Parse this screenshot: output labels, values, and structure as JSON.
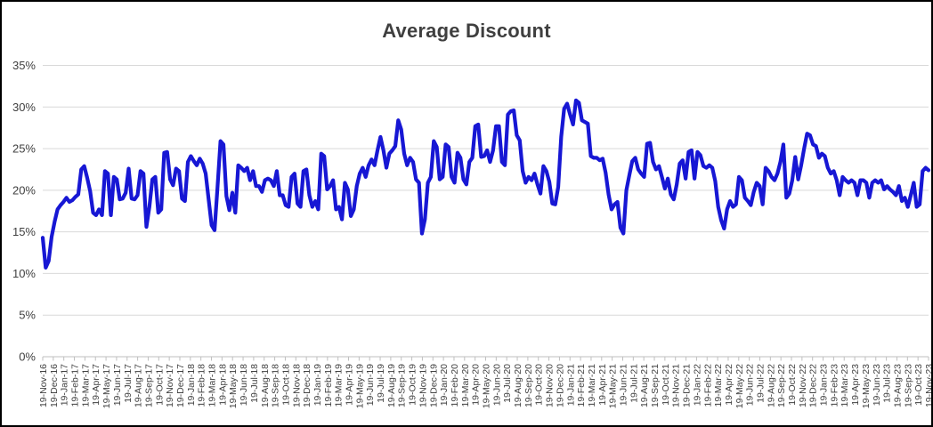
{
  "chart_data": {
    "type": "line",
    "title": "Average Discount",
    "legend": false,
    "grid": true,
    "colors": {
      "line": "#1717d4",
      "gridline": "#d9d9d9",
      "axis": "#bfbfbf",
      "tick_label": "#404040",
      "title": "#3f3f3f"
    },
    "y_axis": {
      "min": 0,
      "max": 35,
      "step": 5,
      "tick_labels": [
        "0%",
        "5%",
        "10%",
        "15%",
        "20%",
        "25%",
        "30%",
        "35%"
      ]
    },
    "x_axis": {
      "tick_labels": [
        "19-Nov-16",
        "19-Dec-16",
        "19-Jan-17",
        "19-Feb-17",
        "19-Mar-17",
        "19-Apr-17",
        "19-May-17",
        "19-Jun-17",
        "19-Jul-17",
        "19-Aug-17",
        "19-Sep-17",
        "19-Oct-17",
        "19-Nov-17",
        "19-Dec-17",
        "19-Jan-18",
        "19-Feb-18",
        "19-Mar-18",
        "19-Apr-18",
        "19-May-18",
        "19-Jun-18",
        "19-Jul-18",
        "19-Aug-18",
        "19-Sep-18",
        "19-Oct-18",
        "19-Nov-18",
        "19-Dec-18",
        "19-Jan-19",
        "19-Feb-19",
        "19-Mar-19",
        "19-Apr-19",
        "19-May-19",
        "19-Jun-19",
        "19-Jul-19",
        "19-Aug-19",
        "19-Sep-19",
        "19-Oct-19",
        "19-Nov-19",
        "19-Dec-19",
        "19-Jan-20",
        "19-Feb-20",
        "19-Mar-20",
        "19-Apr-20",
        "19-May-20",
        "19-Jun-20",
        "19-Jul-20",
        "19-Aug-20",
        "19-Sep-20",
        "19-Oct-20",
        "19-Nov-20",
        "19-Dec-20",
        "19-Jan-21",
        "19-Feb-21",
        "19-Mar-21",
        "19-Apr-21",
        "19-May-21",
        "19-Jun-21",
        "19-Jul-21",
        "19-Aug-21",
        "19-Sep-21",
        "19-Oct-21",
        "19-Nov-21",
        "19-Dec-21",
        "19-Jan-22",
        "19-Feb-22",
        "19-Mar-22",
        "19-Apr-22",
        "19-May-22",
        "19-Jun-22",
        "19-Jul-22",
        "19-Aug-22",
        "19-Sep-22",
        "19-Oct-22",
        "19-Nov-22",
        "19-Dec-22",
        "19-Jan-23",
        "19-Feb-23",
        "19-Mar-23",
        "19-Apr-23",
        "19-May-23",
        "19-Jun-23",
        "19-Jul-23",
        "19-Aug-23",
        "19-Sep-23",
        "19-Oct-23",
        "19-Nov-23"
      ]
    },
    "series_name": "Average Discount",
    "values": [
      14.3,
      10.7,
      11.5,
      14.4,
      16.2,
      17.7,
      18.2,
      18.6,
      19.1,
      18.6,
      18.8,
      19.2,
      19.5,
      22.5,
      22.9,
      21.5,
      19.9,
      17.3,
      17.0,
      17.7,
      17.0,
      22.3,
      22.0,
      17.0,
      21.6,
      21.3,
      18.9,
      19.0,
      19.7,
      22.6,
      19.0,
      18.9,
      19.4,
      22.3,
      22.0,
      15.6,
      18.0,
      21.3,
      21.6,
      17.3,
      17.7,
      24.5,
      24.6,
      21.3,
      20.6,
      22.6,
      22.3,
      19.0,
      18.7,
      23.4,
      24.1,
      23.5,
      23.0,
      23.8,
      23.2,
      22.0,
      18.9,
      15.8,
      15.2,
      20.4,
      25.9,
      25.5,
      19.3,
      17.6,
      19.7,
      17.3,
      23.0,
      22.7,
      22.3,
      22.7,
      21.2,
      22.3,
      20.5,
      20.5,
      19.8,
      21.2,
      21.4,
      21.2,
      20.5,
      22.3,
      19.4,
      19.4,
      18.2,
      18.0,
      21.6,
      22.0,
      18.4,
      18.0,
      22.3,
      22.5,
      19.4,
      18.0,
      18.7,
      17.7,
      24.4,
      24.1,
      20.1,
      20.5,
      21.2,
      17.7,
      18.0,
      16.5,
      20.9,
      20.1,
      16.9,
      17.7,
      20.5,
      22.0,
      22.7,
      21.6,
      23.0,
      23.7,
      23.0,
      24.8,
      26.4,
      24.8,
      22.7,
      24.4,
      24.8,
      25.3,
      28.4,
      27.3,
      24.4,
      23.0,
      23.9,
      23.4,
      21.3,
      20.9,
      14.8,
      16.5,
      20.9,
      21.6,
      25.9,
      25.2,
      21.3,
      21.6,
      25.5,
      25.2,
      21.6,
      20.9,
      24.5,
      23.9,
      21.3,
      20.7,
      23.4,
      23.9,
      27.7,
      27.9,
      24.0,
      24.1,
      24.8,
      23.4,
      24.8,
      27.7,
      27.7,
      23.4,
      23.0,
      29.1,
      29.5,
      29.6,
      26.6,
      26.0,
      22.3,
      20.9,
      21.6,
      21.2,
      22.0,
      20.7,
      19.6,
      22.9,
      22.3,
      21.0,
      18.4,
      18.3,
      20.4,
      26.4,
      29.8,
      30.4,
      29.1,
      27.9,
      30.8,
      30.5,
      28.4,
      28.2,
      28.0,
      24.1,
      23.9,
      23.9,
      23.6,
      23.8,
      22.1,
      19.5,
      17.7,
      18.3,
      18.6,
      15.5,
      14.8,
      20.0,
      21.8,
      23.5,
      23.9,
      22.5,
      22.0,
      21.6,
      25.6,
      25.7,
      23.4,
      22.5,
      22.9,
      21.6,
      20.2,
      21.4,
      19.5,
      18.9,
      20.7,
      23.2,
      23.6,
      21.4,
      24.6,
      24.8,
      21.4,
      24.6,
      24.2,
      22.9,
      22.7,
      23.0,
      22.7,
      21.1,
      18.0,
      16.4,
      15.4,
      17.7,
      18.7,
      18.0,
      18.3,
      21.6,
      21.2,
      19.1,
      18.7,
      18.2,
      19.8,
      20.9,
      20.5,
      18.3,
      22.7,
      22.3,
      21.6,
      21.2,
      22.0,
      23.4,
      25.5,
      19.1,
      19.6,
      21.2,
      24.0,
      21.3,
      23.0,
      25.0,
      26.8,
      26.6,
      25.5,
      25.3,
      23.9,
      24.4,
      24.1,
      22.7,
      22.0,
      22.3,
      21.2,
      19.4,
      21.6,
      21.2,
      20.9,
      21.2,
      20.9,
      19.4,
      21.2,
      21.2,
      20.9,
      19.1,
      20.9,
      21.2,
      20.9,
      21.2,
      20.1,
      20.5,
      20.1,
      19.8,
      19.4,
      20.5,
      18.7,
      19.1,
      18.0,
      19.4,
      20.9,
      18.0,
      18.3,
      22.3,
      22.7,
      22.4
    ]
  }
}
